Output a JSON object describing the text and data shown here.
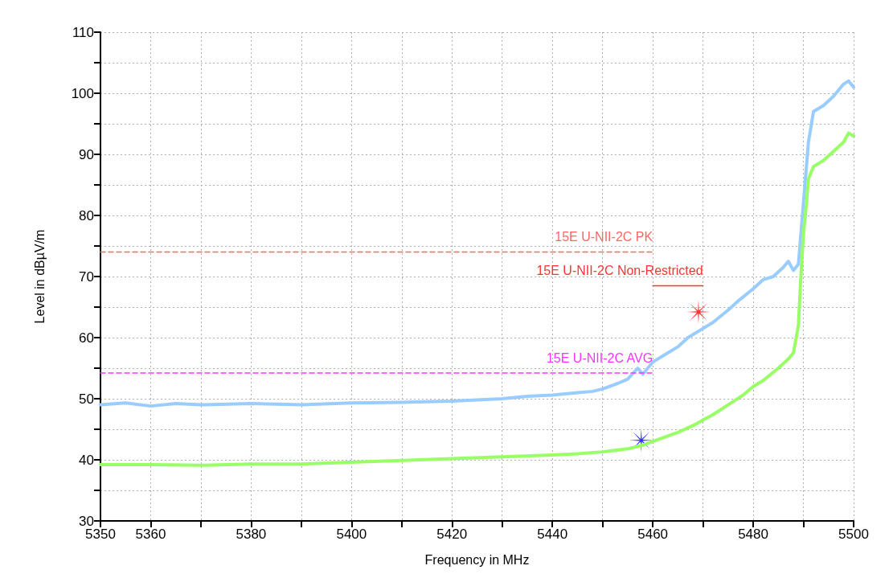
{
  "chart_data": {
    "type": "line",
    "xlabel": "Frequency in MHz",
    "ylabel": "Level in dBµV/m",
    "xlim": [
      5350,
      5500
    ],
    "xticks": [
      5350,
      5360,
      {
        "value": 5370,
        "label": null
      },
      5380,
      {
        "value": 5390,
        "label": null
      },
      5400,
      {
        "value": 5410,
        "label": null
      },
      5420,
      {
        "value": 5430,
        "label": null
      },
      5440,
      {
        "value": 5450,
        "label": null
      },
      5460,
      {
        "value": 5470,
        "label": null
      },
      5480,
      {
        "value": 5490,
        "label": null
      },
      5500
    ],
    "ylim": [
      30,
      110
    ],
    "yticks": [
      30,
      {
        "value": 35,
        "label": null
      },
      40,
      {
        "value": 45,
        "label": null
      },
      50,
      {
        "value": 55,
        "label": null
      },
      60,
      {
        "value": 65,
        "label": null
      },
      70,
      {
        "value": 75,
        "label": null
      },
      80,
      {
        "value": 85,
        "label": null
      },
      90,
      {
        "value": 95,
        "label": null
      },
      100,
      {
        "value": 105,
        "label": null
      },
      110
    ],
    "grid": true,
    "legend": false,
    "marker": "none",
    "series": [
      {
        "color": "#99ccff",
        "line_style": "solid",
        "x": [
          5350,
          5355,
          5360,
          5365,
          5370,
          5380,
          5390,
          5400,
          5410,
          5420,
          5425,
          5430,
          5435,
          5440,
          5445,
          5448,
          5450,
          5453,
          5455,
          5457,
          5458,
          5460,
          5462,
          5465,
          5467,
          5470,
          5472,
          5475,
          5477,
          5480,
          5482,
          5484,
          5486,
          5487,
          5488,
          5489,
          5490,
          5491,
          5492,
          5494,
          5496,
          5498,
          5499,
          5500
        ],
        "values": [
          49,
          49.3,
          48.8,
          49.2,
          49,
          49.2,
          49,
          49.3,
          49.4,
          49.6,
          49.8,
          50,
          50.4,
          50.6,
          51,
          51.2,
          51.6,
          52.5,
          53.2,
          55,
          54,
          56,
          57,
          58.5,
          60,
          61.5,
          62.5,
          64.5,
          66,
          68,
          69.5,
          70,
          71.5,
          72.5,
          71,
          72,
          82,
          92,
          97,
          98,
          99.5,
          101.5,
          102,
          101
        ]
      },
      {
        "color": "#99ff66",
        "line_style": "solid",
        "x": [
          5350,
          5360,
          5370,
          5380,
          5390,
          5400,
          5410,
          5420,
          5430,
          5440,
          5445,
          5450,
          5455,
          5458,
          5460,
          5462,
          5465,
          5468,
          5470,
          5472,
          5475,
          5478,
          5480,
          5482,
          5485,
          5487,
          5488,
          5489,
          5489.5,
          5490,
          5490.5,
          5491,
          5492,
          5494,
          5496,
          5498,
          5499,
          5500
        ],
        "values": [
          39.2,
          39.2,
          39.1,
          39.3,
          39.3,
          39.6,
          39.9,
          40.2,
          40.5,
          40.8,
          41,
          41.3,
          41.8,
          42.4,
          43,
          43.6,
          44.5,
          45.6,
          46.5,
          47.4,
          49,
          50.6,
          52,
          53,
          55,
          56.5,
          57.5,
          62,
          70,
          77,
          81,
          86,
          88,
          89,
          90.5,
          92,
          93.5,
          93
        ]
      },
      {
        "type": "line",
        "name": "15E U-NII-2C PK",
        "color": "#ff6666",
        "line_style": "dashed",
        "x": [
          5350,
          5460
        ],
        "values": [
          74,
          74
        ]
      },
      {
        "type": "line",
        "name": "15E U-NII-2C Non-Restricted",
        "color": "#ff3333",
        "line_style": "solid",
        "x": [
          5460,
          5470
        ],
        "values": [
          68.5,
          68.5
        ]
      },
      {
        "type": "line",
        "name": "15E U-NII-2C AVG",
        "color": "#ff33ff",
        "line_style": "dashed",
        "x": [
          5350,
          5460
        ],
        "values": [
          54.2,
          54.2
        ]
      },
      {
        "type": "scatter",
        "color": "#ff0000",
        "marker": "star",
        "x": [
          5469.1
        ],
        "values": [
          64.2
        ]
      },
      {
        "type": "scatter",
        "color": "#0000ff",
        "marker": "star",
        "x": [
          5457.7
        ],
        "values": [
          43.2
        ]
      }
    ]
  }
}
